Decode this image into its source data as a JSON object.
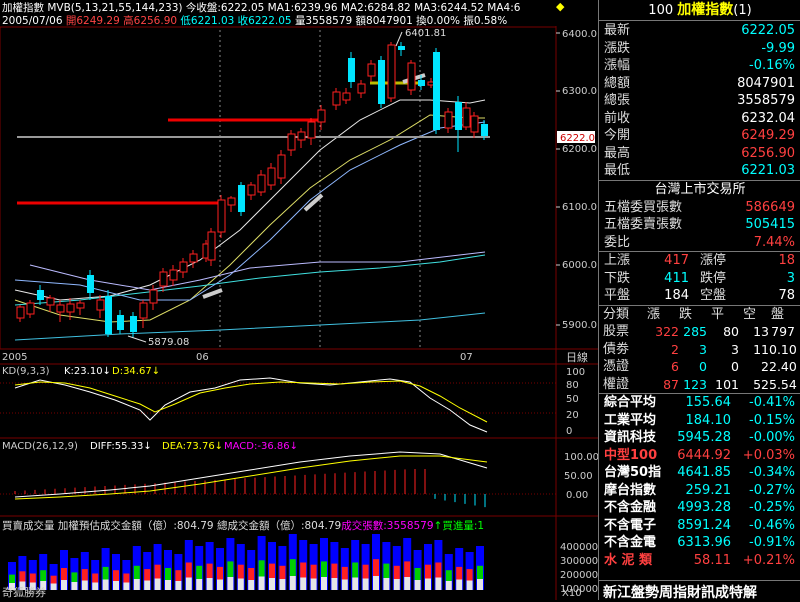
{
  "chart_header": {
    "line1": "加權指數  MVB(5,13,21,55,144,233)  今收盤:6222.05  MA1:6239.96  MA2:6284.82  MA3:6244.52  MA4:6",
    "line2_date": "2005/07/06",
    "line2_open": "開6249.29",
    "line2_high": "高6256.90",
    "line2_low": "低6221.03",
    "line2_close": "收6222.05",
    "line2_vol": "量3558579",
    "line2_amt": "額8047901",
    "line2_rest": "換0.00% 振0.58%",
    "corner_icon": "diamond-icon"
  },
  "price_axis": [
    "6400.0",
    "6300.0",
    "6200.0",
    "6100.0",
    "6000.0",
    "5900.0"
  ],
  "price_marks": {
    "high_label": "6401.81",
    "low_label": "5879.08",
    "current_tag": "6222.0"
  },
  "date_axis": {
    "labels": [
      "2005",
      "06",
      "07"
    ],
    "period": "日線"
  },
  "kd": {
    "label": "KD(9,3,3)",
    "k": "K:23.10↓",
    "d": "D:34.67↓",
    "axis": [
      "100",
      "80",
      "50",
      "20",
      "0"
    ]
  },
  "macd": {
    "label": "MACD(26,12,9)",
    "diff": "DIFF:55.33↓",
    "dea": "DEA:73.76↓",
    "macd": "MACD:-36.86↓",
    "axis": [
      "100.00",
      "50.00",
      "0.00"
    ]
  },
  "volume": {
    "label": "買賣成交量  加權預估成交金額（億）:804.79  總成交金額（億）:804.79",
    "sub": "成交張數:3558579",
    "buy": "↑買進量:1",
    "axis": [
      "400000",
      "300000",
      "200000",
      "100000"
    ],
    "scale": "X10"
  },
  "status_left": "奇狐勝券",
  "panel": {
    "title_code": "100",
    "title_name": "加權指數",
    "title_suffix": "(1)",
    "quote": [
      {
        "label": "最新",
        "value": "6222.05",
        "color": "#00ffff"
      },
      {
        "label": "漲跌",
        "value": "-9.99",
        "color": "#00ffff"
      },
      {
        "label": "漲幅",
        "value": "-0.16%",
        "color": "#00ffff"
      },
      {
        "label": "總額",
        "value": "8047901",
        "color": "#ffffff"
      },
      {
        "label": "總張",
        "value": "3558579",
        "color": "#ffffff"
      },
      {
        "label": "前收",
        "value": "6232.04",
        "color": "#ffffff"
      },
      {
        "label": "今開",
        "value": "6249.29",
        "color": "#ff4040"
      },
      {
        "label": "最高",
        "value": "6256.90",
        "color": "#ff4040"
      },
      {
        "label": "最低",
        "value": "6221.03",
        "color": "#00ffff"
      }
    ],
    "exchange": "台灣上市交易所",
    "book": [
      {
        "label": "五檔委買張數",
        "value": "586649",
        "color": "#ff4040"
      },
      {
        "label": "五檔委賣張數",
        "value": "505415",
        "color": "#00ffff"
      },
      {
        "label": "委比",
        "value": "7.44%",
        "color": "#ff4040"
      }
    ],
    "breadth": [
      {
        "l1": "上漲",
        "v1": "417",
        "c1": "#ff4040",
        "l2": "漲停",
        "v2": "18",
        "c2": "#ff4040"
      },
      {
        "l1": "下跌",
        "v1": "411",
        "c1": "#00ffff",
        "l2": "跌停",
        "v2": "3",
        "c2": "#00ffff"
      },
      {
        "l1": "平盤",
        "v1": "184",
        "c1": "#ffffff",
        "l2": "空盤",
        "v2": "78",
        "c2": "#ffffff"
      }
    ],
    "cls_header": [
      "分類",
      "漲",
      "跌",
      "平",
      "空",
      "盤"
    ],
    "cls_rows": [
      {
        "name": "股票",
        "a": "322",
        "b": "285",
        "c": "80",
        "d": "13",
        "e": "797"
      },
      {
        "name": "債劵",
        "a": "2",
        "b": "3",
        "c": "3",
        "d": "11",
        "e": "0.10"
      },
      {
        "name": "憑證",
        "a": "6",
        "b": "0",
        "c": "0",
        "d": "2",
        "e": "2.40"
      },
      {
        "name": "權證",
        "a": "87",
        "b": "123",
        "c": "101",
        "d": "52",
        "e": "5.54"
      }
    ],
    "indices": [
      {
        "name": "綜合平均",
        "value": "155.64",
        "chg": "-0.41%",
        "nc": "#ffffff",
        "vc": "#00ffff"
      },
      {
        "name": "工業平均",
        "value": "184.10",
        "chg": "-0.15%",
        "nc": "#ffffff",
        "vc": "#00ffff"
      },
      {
        "name": "資訊科技",
        "value": "5945.28",
        "chg": "-0.00%",
        "nc": "#ffffff",
        "vc": "#00ffff"
      },
      {
        "name": "中型100",
        "value": "6444.92",
        "chg": "+0.03%",
        "nc": "#ff4040",
        "vc": "#ff4040"
      },
      {
        "name": "台灣50指",
        "value": "4641.85",
        "chg": "-0.34%",
        "nc": "#ffffff",
        "vc": "#00ffff"
      },
      {
        "name": "摩台指數",
        "value": "259.21",
        "chg": "-0.27%",
        "nc": "#ffffff",
        "vc": "#00ffff"
      },
      {
        "name": "不含金融",
        "value": "4993.28",
        "chg": "-0.25%",
        "nc": "#ffffff",
        "vc": "#00ffff"
      },
      {
        "name": "不含電子",
        "value": "8591.24",
        "chg": "-0.46%",
        "nc": "#ffffff",
        "vc": "#00ffff"
      },
      {
        "name": "不含金電",
        "value": "6313.96",
        "chg": "-0.91%",
        "nc": "#ffffff",
        "vc": "#00ffff"
      },
      {
        "name": "水 泥 類",
        "value": "58.11",
        "chg": "+0.21%",
        "nc": "#ff4040",
        "vc": "#ff4040"
      }
    ],
    "ticker": "新江盤勢周指財訊成特解"
  },
  "colors": {
    "up": "#ff2020",
    "down": "#00e5ff",
    "ma_white": "#ffffff",
    "ma_yellow": "#ffff00",
    "panel_border": "#777777"
  }
}
